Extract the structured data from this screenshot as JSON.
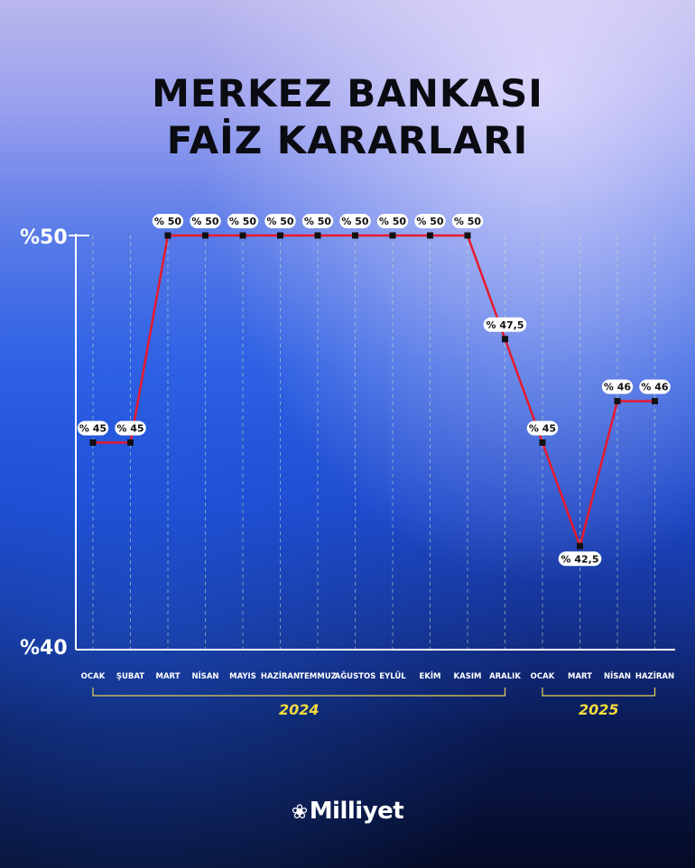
{
  "header": {
    "title_line1": "MERKEZ BANKASI",
    "title_line2": "FAİZ KARARLARI"
  },
  "brand": {
    "name": "Milliyet",
    "icon": "flame-icon"
  },
  "colors": {
    "line": "#e8192c",
    "marker": "#111111",
    "axis": "#ffffff",
    "year_bracket": "#e6d15a",
    "year_text": "#f2dc3c"
  },
  "chart_data": {
    "type": "line",
    "title": "MERKEZ BANKASI FAİZ KARARLARI",
    "xlabel": "",
    "ylabel": "",
    "ylim": [
      40,
      50
    ],
    "y_tick_labels": [
      "%40",
      "%50"
    ],
    "categories": [
      "OCAK",
      "ŞUBAT",
      "MART",
      "NİSAN",
      "MAYIS",
      "HAZİRAN",
      "TEMMUZ",
      "AĞUSTOS",
      "EYLÜL",
      "EKİM",
      "KASIM",
      "ARALIK",
      "OCAK",
      "MART",
      "NİSAN",
      "HAZİRAN"
    ],
    "values": [
      45,
      45,
      50,
      50,
      50,
      50,
      50,
      50,
      50,
      50,
      50,
      47.5,
      45,
      42.5,
      46,
      46
    ],
    "data_labels": [
      "% 45",
      "% 45",
      "% 50",
      "% 50",
      "% 50",
      "% 50",
      "% 50",
      "% 50",
      "% 50",
      "% 50",
      "% 50",
      "% 47,5",
      "% 45",
      "% 42,5",
      "% 46",
      "% 46"
    ],
    "label_below": [
      false,
      false,
      false,
      false,
      false,
      false,
      false,
      false,
      false,
      false,
      false,
      false,
      false,
      true,
      false,
      false
    ],
    "groups": [
      {
        "label": "2024",
        "start": 0,
        "end": 11
      },
      {
        "label": "2025",
        "start": 12,
        "end": 15
      }
    ],
    "grid": "vertical dashed",
    "legend": "none"
  }
}
